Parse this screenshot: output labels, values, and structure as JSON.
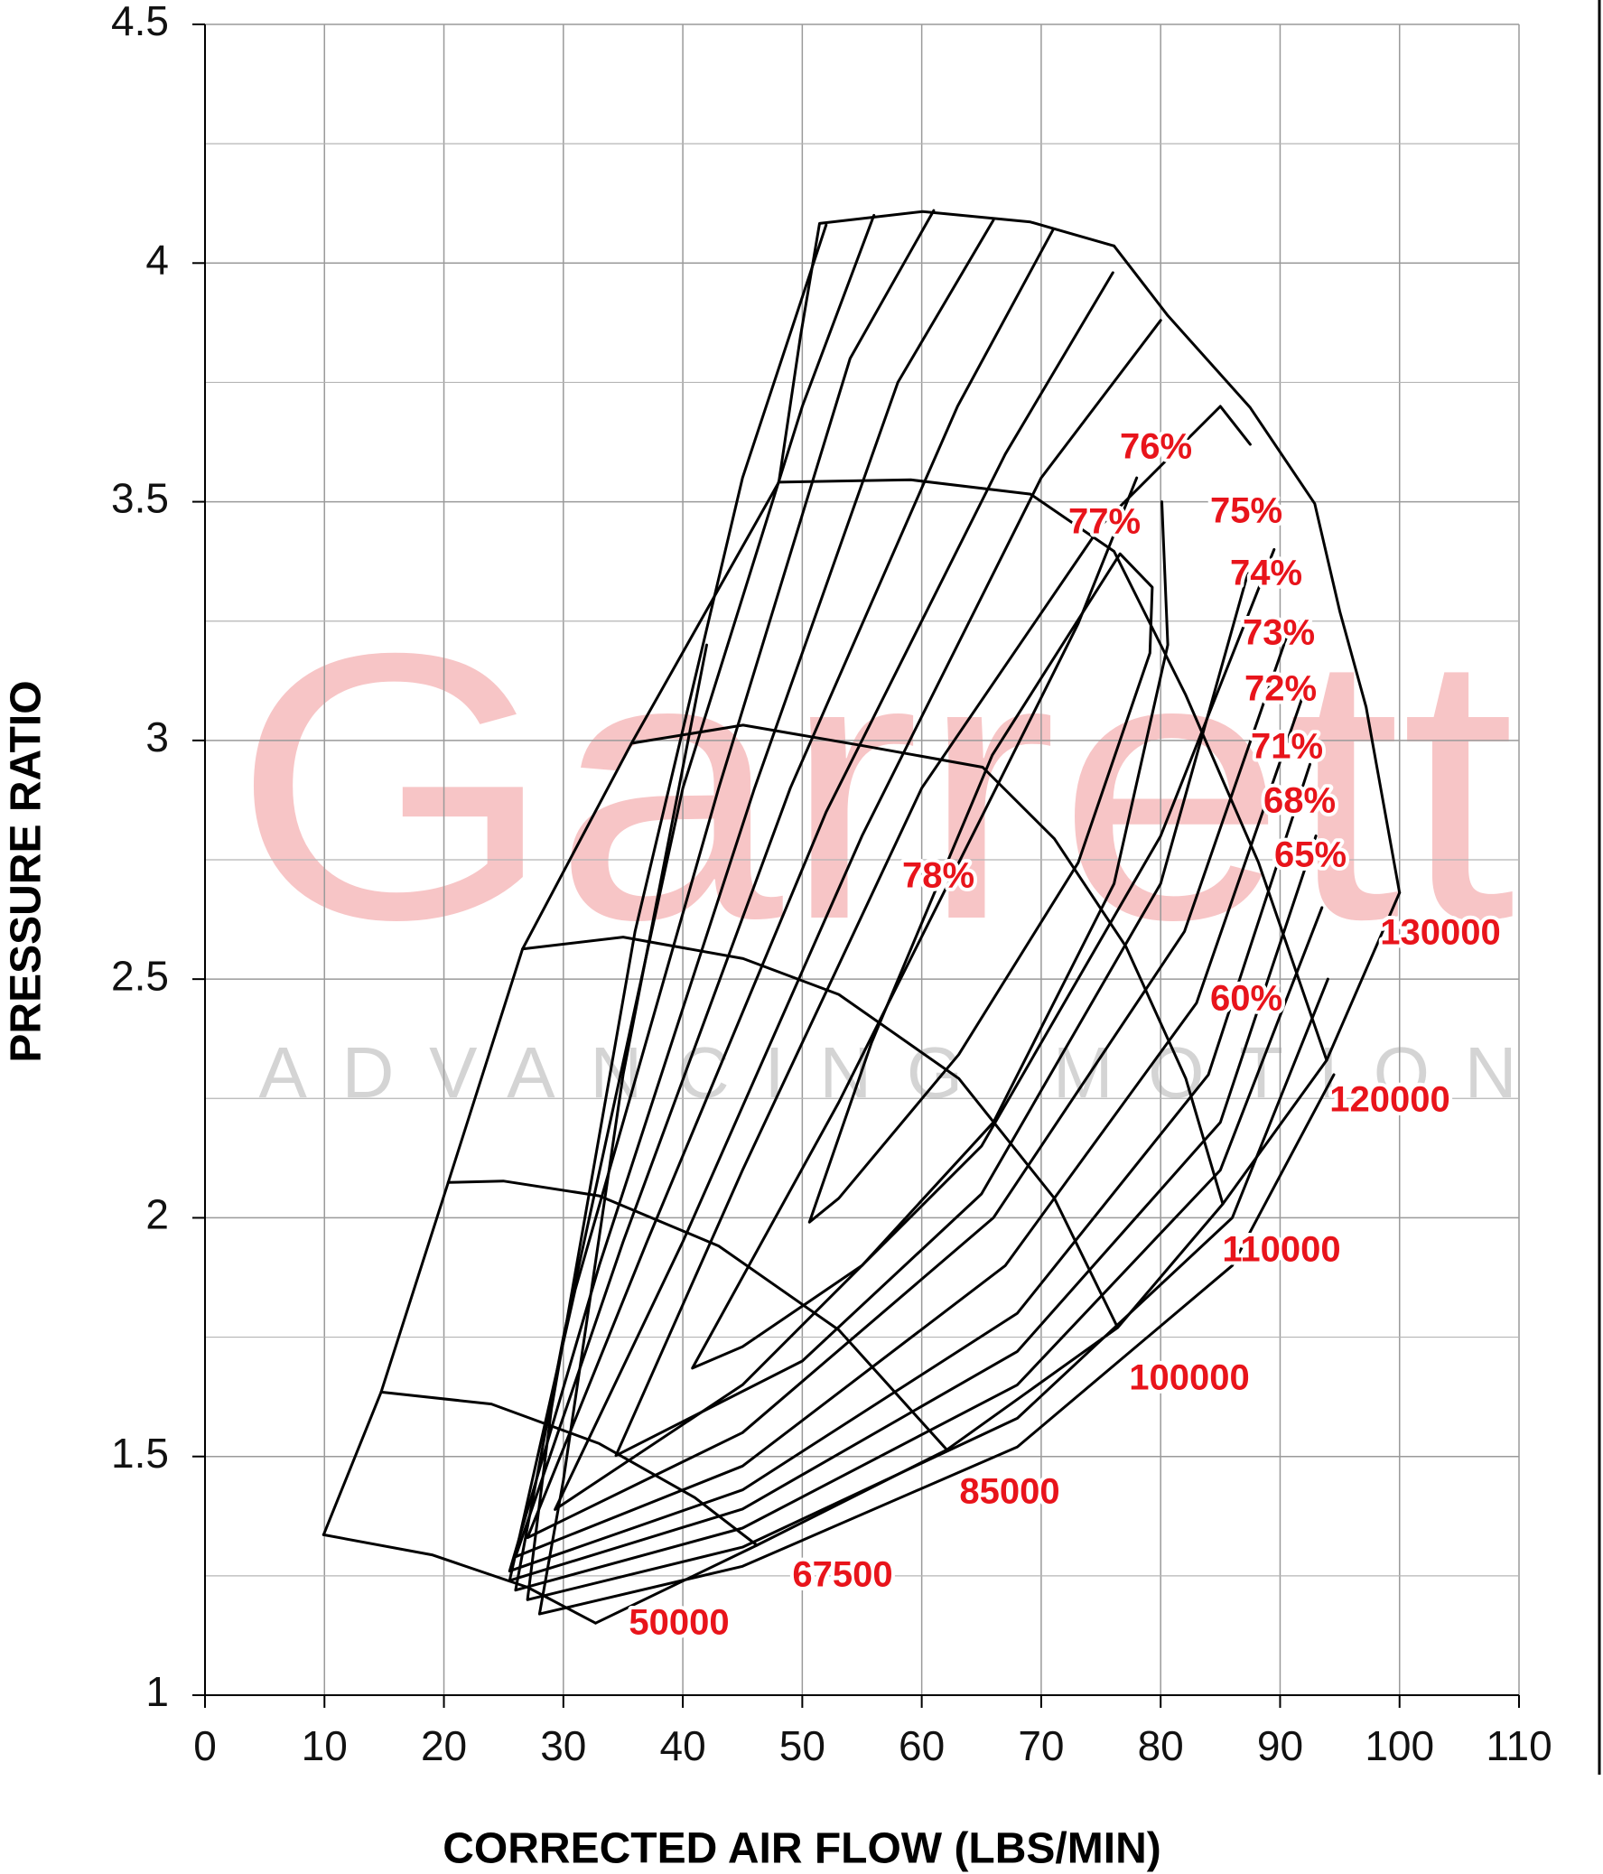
{
  "chart_data": {
    "type": "line",
    "watermark": {
      "logo": "Garrett",
      "tagline": "ADVANCING MOTION"
    },
    "x_label": "CORRECTED AIR FLOW (LBS/MIN)",
    "y_label": "PRESSURE RATIO",
    "xlim": [
      0,
      110
    ],
    "ylim": [
      1,
      4.5
    ],
    "xticks": [
      0,
      10,
      20,
      30,
      40,
      50,
      60,
      70,
      80,
      90,
      100,
      110
    ],
    "yticks": [
      1,
      1.5,
      2,
      2.5,
      3,
      3.5,
      4,
      4.5
    ],
    "y_minor_grid": [
      1.25,
      1.75,
      2.25,
      2.75,
      3.25,
      3.75,
      4.25
    ],
    "grid": true,
    "label_color": "#e8141b",
    "series": [
      {
        "color": "#000000",
        "x": [
          9.93,
          14.74,
          20.36,
          26.58,
          35.71,
          48.04,
          49.85,
          51.45,
          60.08,
          69.1,
          76.1
        ],
        "y": [
          1.336,
          1.635,
          2.074,
          2.563,
          2.994,
          3.541,
          3.847,
          4.083,
          4.108,
          4.086,
          4.036
        ]
      },
      {
        "color": "#000000",
        "x": [
          100.0,
          93.9,
          85.2,
          76.4,
          62.1,
          46.2,
          32.7
        ],
        "y": [
          2.681,
          2.33,
          2.029,
          1.77,
          1.514,
          1.314,
          1.151
        ]
      },
      {
        "name": "50000",
        "color": "#000000",
        "x": [
          9.93,
          19.0,
          27.0,
          32.7
        ],
        "y": [
          1.336,
          1.294,
          1.226,
          1.151
        ]
      },
      {
        "name": "67500",
        "color": "#000000",
        "x": [
          14.74,
          23.97,
          33.0,
          41.0,
          46.2
        ],
        "y": [
          1.635,
          1.61,
          1.527,
          1.414,
          1.314
        ]
      },
      {
        "name": "85000",
        "color": "#000000",
        "x": [
          20.36,
          24.97,
          33.0,
          43.0,
          53.06,
          62.1
        ],
        "y": [
          2.074,
          2.077,
          2.046,
          1.941,
          1.765,
          1.514
        ]
      },
      {
        "name": "100000",
        "color": "#000000",
        "x": [
          26.58,
          35.0,
          45.04,
          53.06,
          63.1,
          71.1,
          76.4
        ],
        "y": [
          2.563,
          2.588,
          2.543,
          2.468,
          2.292,
          2.041,
          1.77
        ]
      },
      {
        "name": "110000",
        "color": "#000000",
        "x": [
          35.71,
          45.04,
          55.07,
          65.1,
          71.1,
          77.1,
          82.1,
          85.2
        ],
        "y": [
          2.994,
          3.032,
          2.989,
          2.944,
          2.794,
          2.568,
          2.292,
          2.029
        ]
      },
      {
        "name": "120000",
        "color": "#000000",
        "x": [
          48.04,
          59.08,
          69.1,
          76.1,
          82.1,
          88.2,
          93.9
        ],
        "y": [
          3.541,
          3.546,
          3.516,
          3.396,
          3.095,
          2.744,
          2.33
        ]
      },
      {
        "name": "130000",
        "color": "#000000",
        "x": [
          76.1,
          80.6,
          87.5,
          92.9,
          95.0,
          97.2,
          100.0
        ],
        "y": [
          4.036,
          3.89,
          3.697,
          3.496,
          3.27,
          3.07,
          2.681
        ]
      },
      {
        "name": "78%",
        "color": "#000000",
        "x": [
          50.6,
          55.8,
          65.9,
          76.6,
          79.3,
          79.1,
          73.1,
          63.1,
          53.06,
          50.6
        ],
        "y": [
          1.991,
          2.367,
          2.969,
          3.391,
          3.321,
          3.183,
          2.744,
          2.342,
          2.041,
          1.991
        ]
      },
      {
        "name": "77%",
        "color": "#000000",
        "x": [
          80.1,
          80.6,
          76.1,
          66.0,
          55.0,
          45.0,
          40.8,
          53.06,
          65.1,
          73.1,
          78.0
        ],
        "y": [
          3.5,
          3.2,
          2.7,
          2.2,
          1.9,
          1.73,
          1.685,
          2.242,
          2.844,
          3.245,
          3.55
        ]
      },
      {
        "name": "76%",
        "color": "#000000",
        "x": [
          87.3,
          80.0,
          65.0,
          50.0,
          34.4,
          45.0,
          60.0,
          75.0,
          85.0,
          87.5
        ],
        "y": [
          3.35,
          2.7,
          2.05,
          1.7,
          1.502,
          2.1,
          2.9,
          3.45,
          3.7,
          3.62
        ]
      },
      {
        "name": "75%",
        "color": "#000000",
        "x": [
          89.5,
          80.0,
          65.0,
          45.0,
          29.3,
          40.0,
          55.0,
          70.0,
          80.0
        ],
        "y": [
          3.4,
          2.8,
          2.15,
          1.65,
          1.389,
          1.95,
          2.8,
          3.55,
          3.88
        ]
      },
      {
        "name": "74%",
        "color": "#000000",
        "x": [
          91.0,
          82.0,
          66.0,
          45.0,
          27.0,
          37.0,
          52.0,
          67.0,
          76.0
        ],
        "y": [
          3.25,
          2.6,
          2.0,
          1.55,
          1.33,
          1.95,
          2.85,
          3.6,
          3.98
        ]
      },
      {
        "name": "73%",
        "color": "#000000",
        "x": [
          92.0,
          83.0,
          67.0,
          45.0,
          26.0,
          35.0,
          49.0,
          63.0,
          71.0
        ],
        "y": [
          3.1,
          2.45,
          1.9,
          1.48,
          1.29,
          1.95,
          2.9,
          3.7,
          4.07
        ]
      },
      {
        "name": "72%",
        "color": "#000000",
        "x": [
          92.5,
          84.0,
          68.0,
          45.0,
          25.5,
          33.0,
          46.0,
          58.0,
          66.0
        ],
        "y": [
          2.95,
          2.3,
          1.8,
          1.43,
          1.26,
          1.9,
          2.9,
          3.75,
          4.09
        ]
      },
      {
        "name": "71%",
        "color": "#000000",
        "x": [
          93.0,
          85.0,
          68.0,
          45.0,
          25.5,
          31.0,
          43.0,
          54.0,
          61.0
        ],
        "y": [
          2.8,
          2.2,
          1.72,
          1.39,
          1.24,
          1.85,
          2.9,
          3.8,
          4.11
        ]
      },
      {
        "name": "68%",
        "color": "#000000",
        "x": [
          93.5,
          85.0,
          68.0,
          45.0,
          26.0,
          30.0,
          40.0,
          50.0,
          56.0
        ],
        "y": [
          2.65,
          2.1,
          1.65,
          1.35,
          1.22,
          1.75,
          2.9,
          3.7,
          4.1
        ]
      },
      {
        "name": "65%",
        "color": "#000000",
        "x": [
          94.0,
          86.0,
          68.0,
          45.0,
          27.0,
          29.0,
          36.0,
          45.0,
          52.0
        ],
        "y": [
          2.5,
          2.0,
          1.58,
          1.31,
          1.2,
          1.6,
          2.6,
          3.55,
          4.08
        ]
      },
      {
        "name": "60%",
        "color": "#000000",
        "x": [
          94.5,
          86.0,
          68.0,
          45.0,
          28.0,
          30.0,
          35.0,
          42.0
        ],
        "y": [
          2.3,
          1.9,
          1.52,
          1.27,
          1.17,
          1.45,
          2.3,
          3.2
        ]
      }
    ]
  }
}
